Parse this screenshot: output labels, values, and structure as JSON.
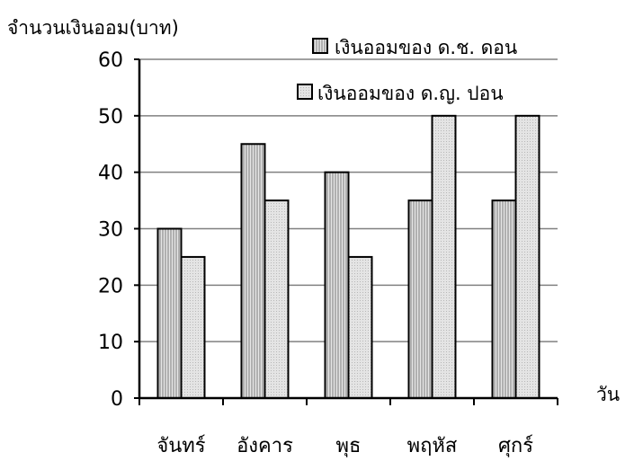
{
  "chart_data": {
    "type": "bar",
    "ylabel": "จำนวนเงินออม(บาท)",
    "xlabel": "วัน",
    "categories": [
      "จันทร์",
      "อังคาร",
      "พุธ",
      "พฤหัส",
      "ศุกร์"
    ],
    "series": [
      {
        "name": "เงินออมของ ด.ช. ดอน",
        "values": [
          30,
          45,
          40,
          35,
          35
        ],
        "pattern": "vertical-stripes",
        "color": "#c8c8c8"
      },
      {
        "name": "เงินออมของ ด.ญ. ปอน",
        "values": [
          25,
          35,
          25,
          50,
          50
        ],
        "pattern": "dots",
        "color": "#d8d8d8"
      }
    ],
    "ylim": [
      0,
      60
    ],
    "yticks": [
      0,
      10,
      20,
      30,
      40,
      50,
      60
    ],
    "grid": true,
    "legend_position": "top-right"
  }
}
